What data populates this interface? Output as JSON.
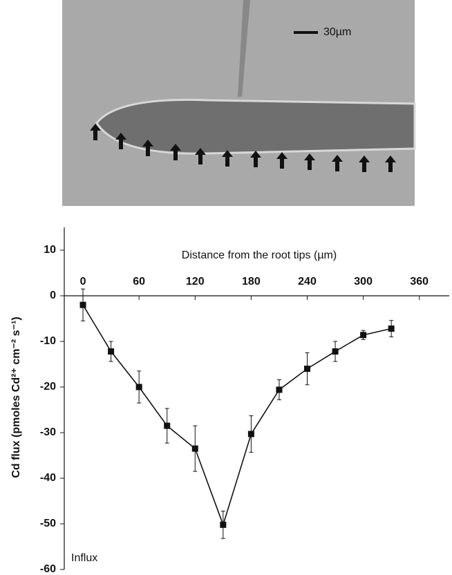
{
  "micrograph": {
    "scale_bar_label": "30µm"
  },
  "chart_data": {
    "type": "line",
    "x_label": "Distance from the root tips (µm)",
    "y_label": "Cd flux (pmoles Cd²⁺ cm⁻² s⁻¹)",
    "annotation": "Influx",
    "x": [
      0,
      30,
      60,
      90,
      120,
      150,
      180,
      210,
      240,
      270,
      300,
      330
    ],
    "series": [
      {
        "color": "#111111",
        "marker": "square",
        "values": [
          -2,
          -12.2,
          -20,
          -28.5,
          -33.5,
          -50.2,
          -30.3,
          -20.6,
          -16,
          -12.2,
          -8.6,
          -7.2
        ],
        "errors": [
          3.5,
          2.2,
          3.5,
          3.8,
          5,
          3,
          4,
          2.2,
          3.5,
          2.2,
          1,
          1.8
        ]
      }
    ],
    "xlim": [
      -20,
      392
    ],
    "xticks": [
      0,
      60,
      120,
      180,
      240,
      300,
      360
    ],
    "ylim": [
      -60,
      15
    ],
    "yticks": [
      -60,
      -50,
      -40,
      -30,
      -20,
      -10,
      0,
      10
    ],
    "grid": false
  }
}
